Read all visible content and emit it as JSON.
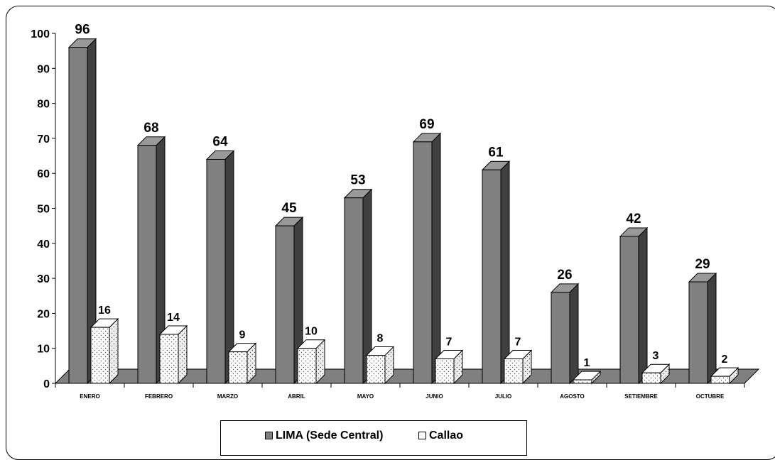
{
  "chart_data": {
    "type": "bar",
    "categories": [
      "ENERO",
      "FEBRERO",
      "MARZO",
      "ABRIL",
      "MAYO",
      "JUNIO",
      "JULIO",
      "AGOSTO",
      "SETIEMBRE",
      "OCTUBRE"
    ],
    "series": [
      {
        "name": "LIMA (Sede Central)",
        "values": [
          96,
          68,
          64,
          45,
          53,
          69,
          61,
          26,
          42,
          29
        ],
        "color": "#808080",
        "side_color": "#404040",
        "top_color": "#999999"
      },
      {
        "name": "Callao",
        "values": [
          16,
          14,
          9,
          10,
          8,
          7,
          7,
          1,
          3,
          2
        ],
        "color": "#ffffff",
        "pattern": "dotted"
      }
    ],
    "y_ticks": [
      "0",
      "10",
      "20",
      "30",
      "40",
      "50",
      "60",
      "70",
      "80",
      "90",
      "100"
    ],
    "ylim": [
      0,
      100
    ],
    "title": "",
    "xlabel": "",
    "ylabel": "",
    "floor_color": "#808080",
    "legend_position": "bottom",
    "grid": false,
    "data_labels": true
  }
}
